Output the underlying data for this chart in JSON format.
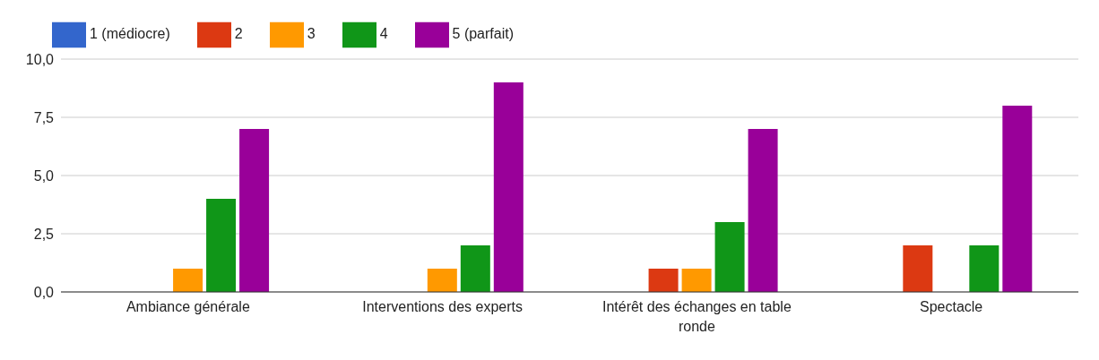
{
  "chart_data": {
    "type": "bar",
    "categories": [
      "Ambiance générale",
      "Interventions des experts",
      "Intérêt des échanges en table ronde",
      "Spectacle"
    ],
    "series": [
      {
        "name": "1 (médiocre)",
        "color": "#3366cc",
        "values": [
          0,
          0,
          0,
          0
        ]
      },
      {
        "name": "2",
        "color": "#dc3912",
        "values": [
          0,
          0,
          1,
          2
        ]
      },
      {
        "name": "3",
        "color": "#ff9900",
        "values": [
          1,
          1,
          1,
          0
        ]
      },
      {
        "name": "4",
        "color": "#109618",
        "values": [
          4,
          2,
          3,
          2
        ]
      },
      {
        "name": "5 (parfait)",
        "color": "#990099",
        "values": [
          7,
          9,
          7,
          8
        ]
      }
    ],
    "ylim": [
      0,
      10
    ],
    "yticks": [
      {
        "value": 0,
        "label": "0,0"
      },
      {
        "value": 2.5,
        "label": "2,5"
      },
      {
        "value": 5,
        "label": "5,0"
      },
      {
        "value": 7.5,
        "label": "7,5"
      },
      {
        "value": 10,
        "label": "10,0"
      }
    ],
    "grid": "y",
    "legend": "top left"
  }
}
